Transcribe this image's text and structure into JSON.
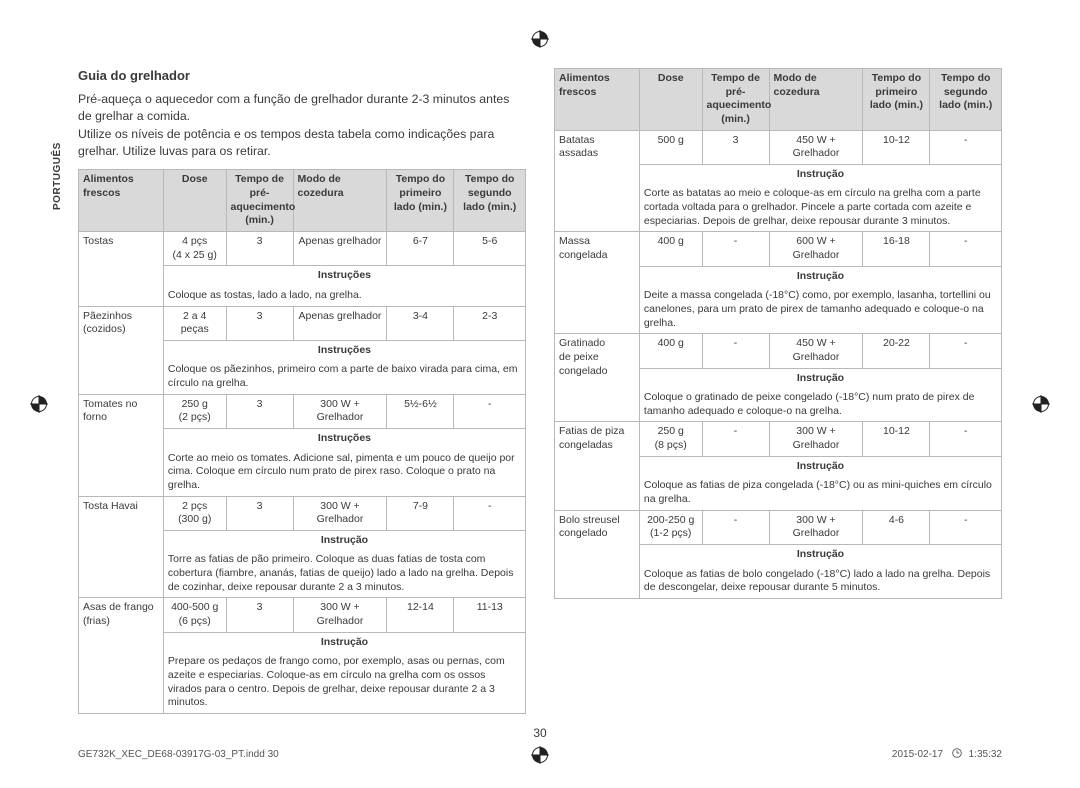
{
  "language_tab": "PORTUGUÊS",
  "page_number": "30",
  "footer_file": "GE732K_XEC_DE68-03917G-03_PT.indd   30",
  "footer_date": "2015-02-17",
  "footer_time": "1:35:32",
  "heading": "Guia do grelhador",
  "intro_1": "Pré-aqueça o aquecedor com a função de grelhador durante 2-3 minutos antes de grelhar a comida.",
  "intro_2": "Utilize os níveis de potência e os tempos desta tabela como indicações para grelhar. Utilize luvas para os retirar.",
  "headers": {
    "h1a": "Alimentos",
    "h1b": "frescos",
    "h2": "Dose",
    "h3a": "Tempo de pré-",
    "h3b": "aquecimento",
    "h3c": "(min.)",
    "h4a": "Modo de",
    "h4b": "cozedura",
    "h5a": "Tempo do",
    "h5b": "primeiro",
    "h5c": "lado (min.)",
    "h6a": "Tempo do",
    "h6b": "segundo",
    "h6c": "lado (min.)"
  },
  "labels": {
    "instrucoes": "Instruções",
    "instrucao": "Instrução"
  },
  "left_rows": [
    {
      "name": "Tostas",
      "name2": "",
      "dose": "4 pçs",
      "dose2": "(4 x 25 g)",
      "pre": "3",
      "mode": "Apenas grelhador",
      "t1": "6-7",
      "t2": "5-6",
      "ikey": "instrucoes",
      "instr": "Coloque as tostas, lado a lado, na grelha."
    },
    {
      "name": "Pãezinhos",
      "name2": "(cozidos)",
      "dose": "2 a 4 peças",
      "dose2": "",
      "pre": "3",
      "mode": "Apenas grelhador",
      "t1": "3-4",
      "t2": "2-3",
      "ikey": "instrucoes",
      "instr": "Coloque os pãezinhos, primeiro com a parte de baixo virada para cima, em círculo na grelha."
    },
    {
      "name": "Tomates no",
      "name2": "forno",
      "dose": "250 g",
      "dose2": "(2 pçs)",
      "pre": "3",
      "mode": "300 W + Grelhador",
      "t1": "5½-6½",
      "t2": "-",
      "ikey": "instrucoes",
      "instr": "Corte ao meio os tomates. Adicione sal, pimenta e um pouco de queijo por cima. Coloque em círculo num prato de pirex raso. Coloque o prato na grelha."
    },
    {
      "name": "Tosta Havai",
      "name2": "",
      "dose": "2 pçs",
      "dose2": "(300 g)",
      "pre": "3",
      "mode": "300 W + Grelhador",
      "t1": "7-9",
      "t2": "-",
      "ikey": "instrucao",
      "instr": "Torre as fatias de pão primeiro. Coloque as duas fatias de tosta com cobertura (fiambre, ananás, fatias de queijo) lado a lado na grelha. Depois de cozinhar, deixe repousar durante 2 a 3 minutos."
    },
    {
      "name": "Asas de frango",
      "name2": "(frias)",
      "dose": "400-500 g",
      "dose2": "(6 pçs)",
      "pre": "3",
      "mode": "300 W + Grelhador",
      "t1": "12-14",
      "t2": "11-13",
      "ikey": "instrucao",
      "instr": "Prepare os pedaços de frango como, por exemplo, asas ou pernas, com azeite e especiarias. Coloque-as em círculo na grelha com os ossos virados para o centro. Depois de grelhar, deixe repousar durante 2 a 3 minutos."
    }
  ],
  "right_rows": [
    {
      "name": "Batatas",
      "name2": "assadas",
      "dose": "500 g",
      "dose2": "",
      "pre": "3",
      "mode": "450 W + Grelhador",
      "t1": "10-12",
      "t2": "-",
      "ikey": "instrucao",
      "instr": "Corte as batatas ao meio e coloque-as em círculo na grelha com a parte cortada voltada para o grelhador. Pincele a parte cortada com azeite e especiarias. Depois de grelhar, deixe repousar durante 3 minutos."
    },
    {
      "name": "Massa",
      "name2": "congelada",
      "dose": "400 g",
      "dose2": "",
      "pre": "-",
      "mode": "600 W + Grelhador",
      "t1": "16-18",
      "t2": "-",
      "ikey": "instrucao",
      "instr": "Deite a massa congelada (-18°C) como, por exemplo, lasanha, tortellini ou canelones, para um prato de pirex de tamanho adequado e coloque-o na grelha."
    },
    {
      "name": "Gratinado",
      "name2": "de peixe",
      "name3": "congelado",
      "dose": "400 g",
      "dose2": "",
      "pre": "-",
      "mode": "450 W + Grelhador",
      "t1": "20-22",
      "t2": "-",
      "ikey": "instrucao",
      "instr": "Coloque o gratinado de peixe congelado (-18°C) num prato de pirex de tamanho adequado e coloque-o na grelha."
    },
    {
      "name": "Fatias de piza",
      "name2": "congeladas",
      "dose": "250 g",
      "dose2": "(8 pçs)",
      "pre": "-",
      "mode": "300 W + Grelhador",
      "t1": "10-12",
      "t2": "-",
      "ikey": "instrucao",
      "instr": "Coloque as fatias de piza congelada (-18°C) ou as mini-quiches em círculo na grelha."
    },
    {
      "name": "Bolo streusel",
      "name2": "congelado",
      "dose": "200-250 g",
      "dose2": "(1-2 pçs)",
      "pre": "-",
      "mode": "300 W + Grelhador",
      "t1": "4-6",
      "t2": "-",
      "ikey": "instrucao",
      "instr": "Coloque as fatias de bolo congelado (-18°C) lado a lado na grelha. Depois de descongelar, deixe repousar durante 5 minutos."
    }
  ],
  "colwidths": {
    "c1": "19%",
    "c2": "14%",
    "c3": "15%",
    "c4": "21%",
    "c5": "15%",
    "c6": "16%"
  },
  "colors": {
    "header_bg": "#d9d9d9",
    "border": "#b8b8b8"
  }
}
